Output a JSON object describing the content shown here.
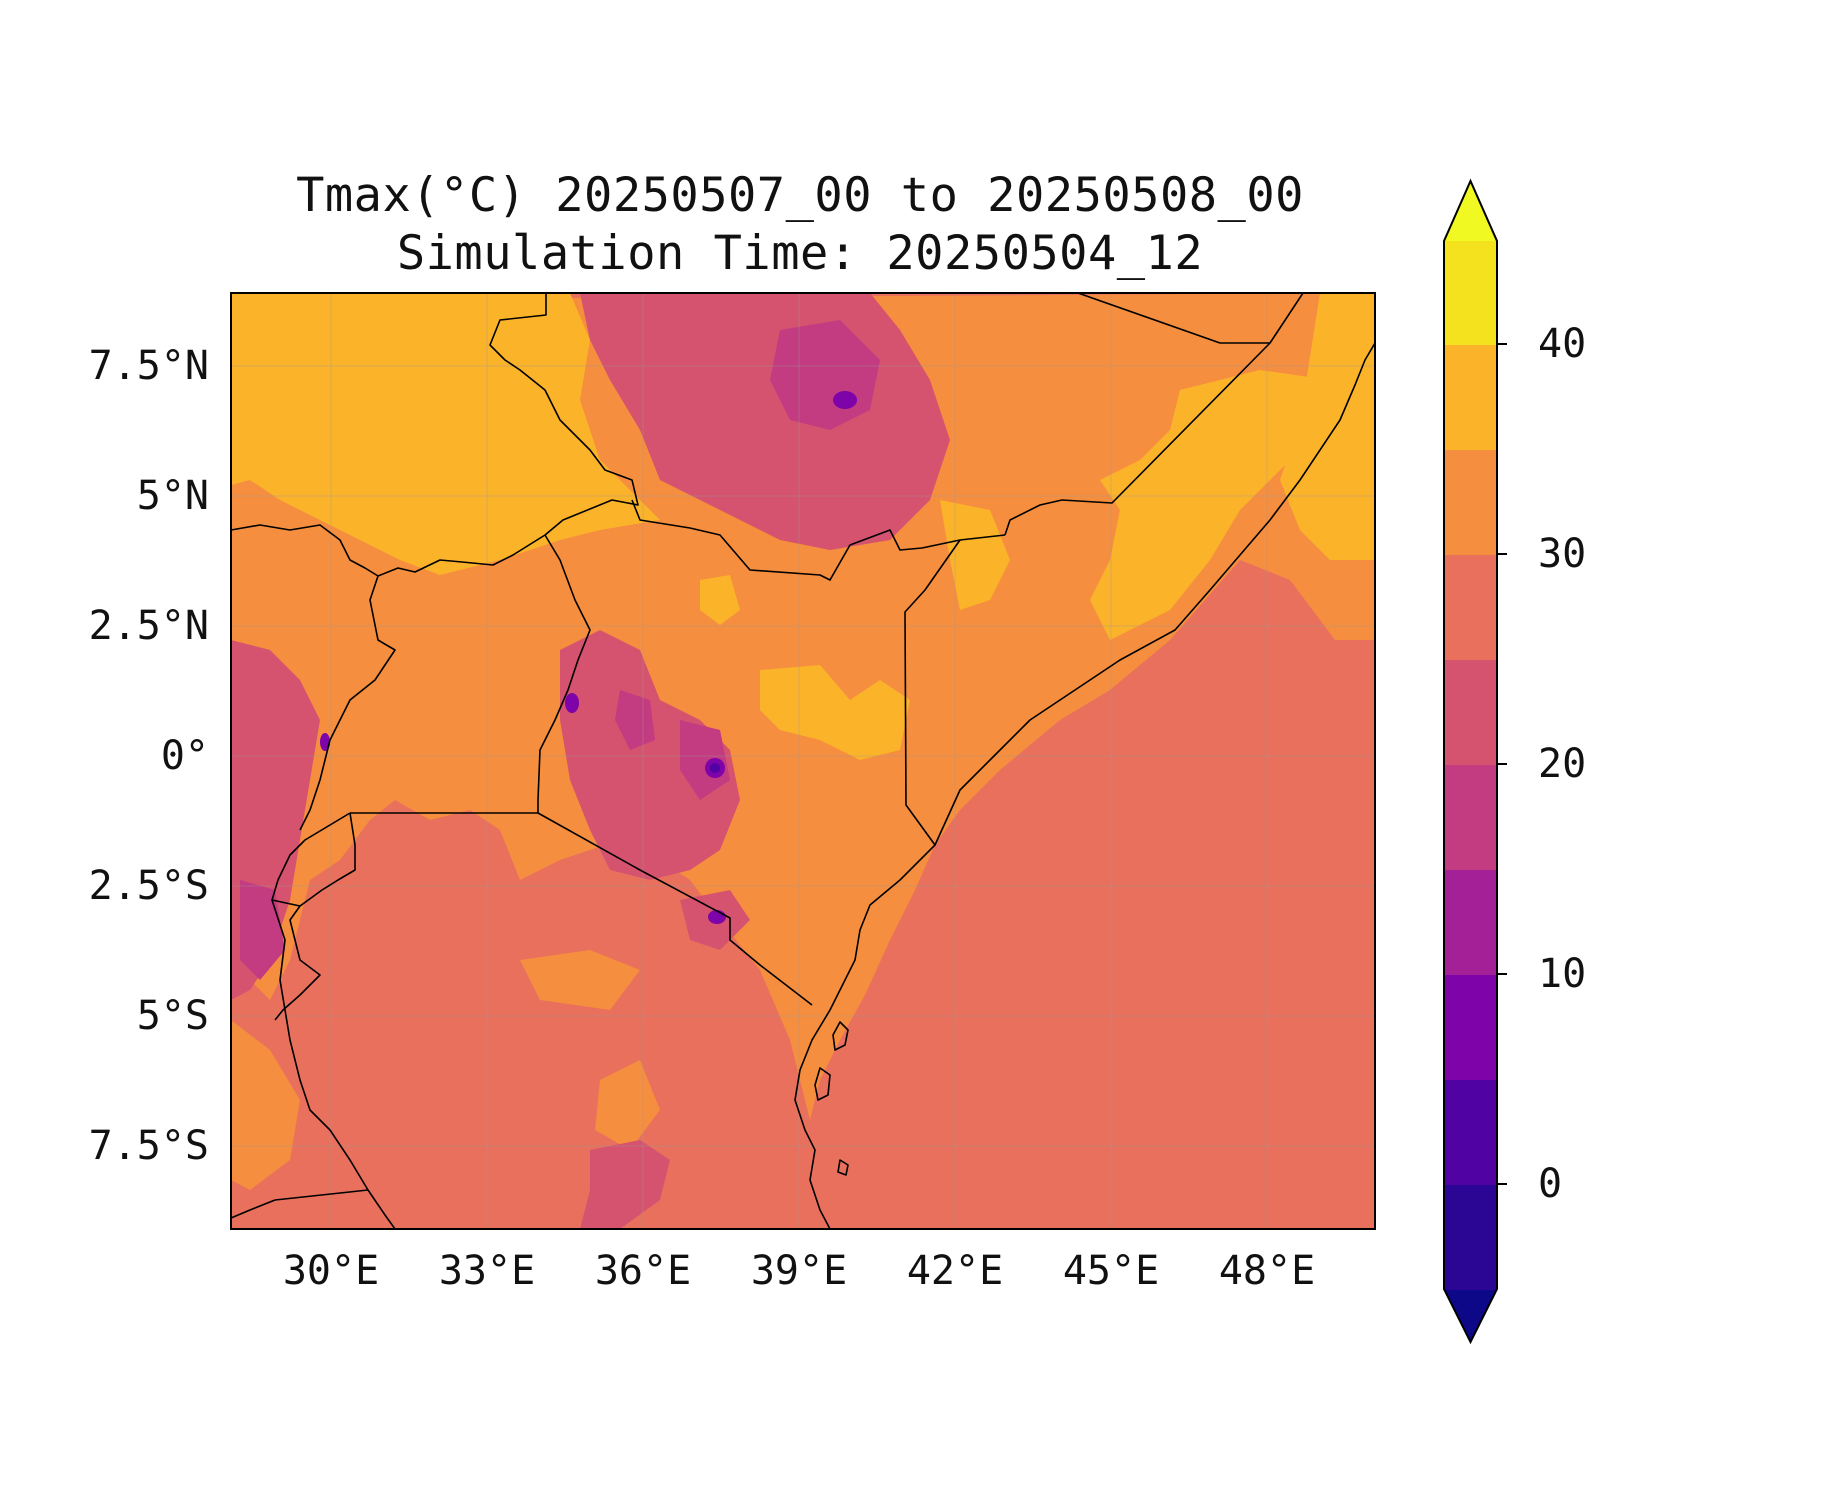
{
  "figure": {
    "title_line1": "Tmax(°C) 20250507_00 to 20250508_00",
    "title_line2": "Simulation Time: 20250504_12"
  },
  "map": {
    "extent": {
      "lon": [
        27.5,
        49.5
      ],
      "lat": [
        -9,
        9
      ]
    },
    "x_ticks": [
      "30°E",
      "33°E",
      "36°E",
      "39°E",
      "42°E",
      "45°E",
      "48°E"
    ],
    "y_ticks": [
      "7.5°N",
      "5°N",
      "2.5°N",
      "0°",
      "2.5°S",
      "5°S",
      "7.5°S"
    ],
    "gridlines": true,
    "borders_color": "#000000"
  },
  "colorbar": {
    "orientation": "vertical",
    "extend": "both",
    "levels": [
      -5,
      0,
      5,
      10,
      15,
      20,
      25,
      30,
      35,
      40,
      45
    ],
    "tick_labels": [
      "0",
      "10",
      "20",
      "30",
      "40"
    ],
    "colors": [
      "#0d0887",
      "#2b0594",
      "#5002a2",
      "#7e03a8",
      "#a42097",
      "#c33b80",
      "#d5536f",
      "#e8705d",
      "#f58e3e",
      "#fbb32a",
      "#f4e21f"
    ],
    "under_color": "#0d0887",
    "over_color": "#f0f921"
  }
}
